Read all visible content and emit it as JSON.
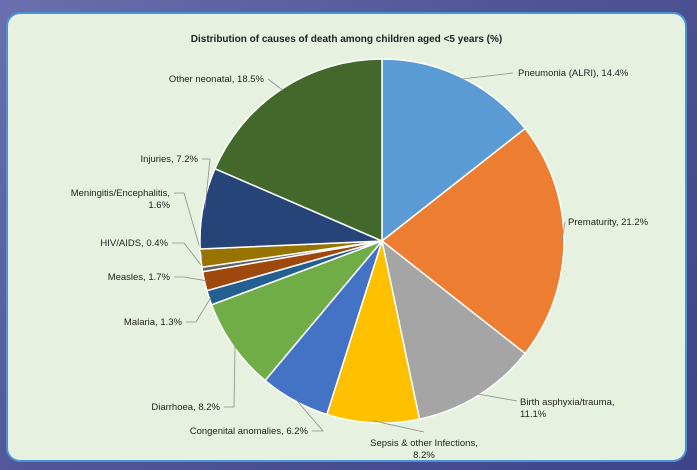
{
  "chart_data": {
    "type": "pie",
    "title": "Distribution of causes of death among children aged <5 years (%)",
    "slices": [
      {
        "label": "Pneumonia (ALRI), 14.4%",
        "name": "Pneumonia (ALRI)",
        "value": 14.4,
        "color": "#5b9bd5"
      },
      {
        "label": "Prematurity, 21.2%",
        "name": "Prematurity",
        "value": 21.2,
        "color": "#ed7d31"
      },
      {
        "label": "Birth asphyxia/trauma, 11.1%",
        "name": "Birth asphyxia/trauma",
        "value": 11.1,
        "color": "#a5a5a5"
      },
      {
        "label": "Sepsis & other Infections, 8.2%",
        "name": "Sepsis & other Infections",
        "value": 8.2,
        "color": "#ffc000"
      },
      {
        "label": "Congenital anomalies, 6.2%",
        "name": "Congenital anomalies",
        "value": 6.2,
        "color": "#4472c4"
      },
      {
        "label": "Diarrhoea, 8.2%",
        "name": "Diarrhoea",
        "value": 8.2,
        "color": "#70ad47"
      },
      {
        "label": "Malaria, 1.3%",
        "name": "Malaria",
        "value": 1.3,
        "color": "#255e91"
      },
      {
        "label": "Measles, 1.7%",
        "name": "Measles",
        "value": 1.7,
        "color": "#9e480e"
      },
      {
        "label": "HIV/AIDS, 0.4%",
        "name": "HIV/AIDS",
        "value": 0.4,
        "color": "#636363"
      },
      {
        "label": "Meningitis/Encephalitis, 1.6%",
        "name": "Meningitis/Encephalitis",
        "value": 1.6,
        "color": "#997300"
      },
      {
        "label": "Injuries, 7.2%",
        "name": "Injuries",
        "value": 7.2,
        "color": "#264478"
      },
      {
        "label": "Other neonatal, 18.5%",
        "name": "Other neonatal",
        "value": 18.5,
        "color": "#43682b"
      }
    ]
  }
}
